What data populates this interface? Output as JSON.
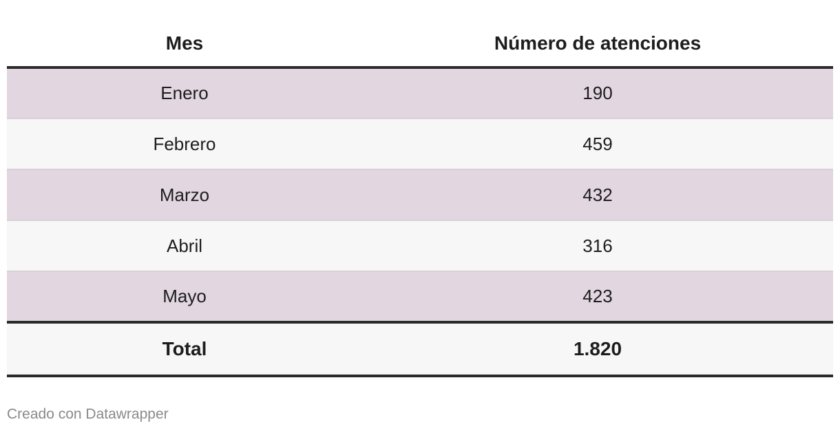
{
  "chart_data": {
    "type": "table",
    "columns": [
      "Mes",
      "Número de atenciones"
    ],
    "rows": [
      [
        "Enero",
        "190"
      ],
      [
        "Febrero",
        "459"
      ],
      [
        "Marzo",
        "432"
      ],
      [
        "Abril",
        "316"
      ],
      [
        "Mayo",
        "423"
      ]
    ],
    "total": [
      "Total",
      "1.820"
    ],
    "row_color_odd": "#e2d6e0",
    "row_color_even": "#f7f7f7"
  },
  "footer": {
    "credit": "Creado con Datawrapper"
  }
}
